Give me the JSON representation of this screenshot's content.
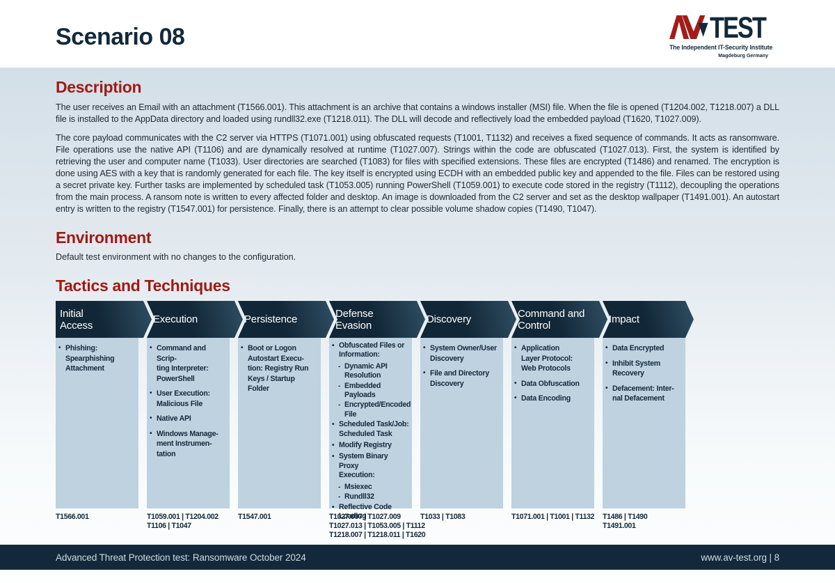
{
  "page": {
    "title": "Scenario 08",
    "footer_left": "Advanced Threat Protection test: Ransomware October 2024",
    "footer_right": "www.av-test.org | 8"
  },
  "logo": {
    "wordmark": "TEST",
    "tagline": "The Independent IT-Security Institute",
    "location": "Magdeburg Germany"
  },
  "sections": {
    "description": {
      "heading": "Description",
      "paragraphs": [
        "The user receives an Email with an attachment (T1566.001). This attachment is an archive that contains a windows installer (MSI) file. When the file is opened (T1204.002, T1218.007) a DLL file is installed to the AppData directory and loaded using rundll32.exe (T1218.011). The DLL will decode and reflectively load the embedded payload (T1620, T1027.009).",
        "The core payload communicates with the C2 server via HTTPS (T1071.001) using obfuscated requests (T1001, T1132) and receives a fixed sequence of commands. It acts as ransomware. File operations use the native API (T1106) and are dynamically resolved at runtime (T1027.007). Strings within the code are obfuscated (T1027.013). First, the system is identified by retrieving the user and computer name (T1033). User directories are searched (T1083) for files with specified extensions. These files are encrypted (T1486) and renamed. The encryption is done using AES with a key that is randomly generated for each file. The key itself is encrypted using ECDH with an embedded public key and appended to the file. Files can be restored using a secret private key. Further tasks are implemented by scheduled task (T1053.005) running PowerShell (T1059.001) to execute code stored in the registry (T1112), decoupling the operations from the main process. A ransom note is written to every affected folder and desktop. An image is downloaded from the C2 server and set as the desktop wallpaper (T1491.001). An autostart entry is written to the registry (T1547.001) for persistence. Finally, there is an attempt to clear possible volume shadow copies (T1490, T1047)."
      ]
    },
    "environment": {
      "heading": "Environment",
      "text": "Default test environment with no changes to the configuration."
    },
    "tactics": {
      "heading": "Tactics and Techniques"
    }
  },
  "matrix": {
    "columns": [
      {
        "header": "Initial\nAccess",
        "items": [
          {
            "style": "bullet",
            "text": "Phishing:\nSpearphishing\nAttachment"
          }
        ],
        "techniques": "T1566.001"
      },
      {
        "header": "Execution",
        "items": [
          {
            "style": "bullet",
            "text": "Command and Scrip-\nting Interpreter:\nPowerShell"
          },
          {
            "style": "bullet",
            "text": "User Execution:\nMalicious File"
          },
          {
            "style": "bullet",
            "text": "Native API"
          },
          {
            "style": "bullet",
            "text": "Windows Manage-\nment Instrumen-\ntation"
          }
        ],
        "techniques": "T1059.001 | T1204.002\nT1106 | T1047"
      },
      {
        "header": "Persistence",
        "items": [
          {
            "style": "bullet",
            "text": "Boot or Logon\nAutostart Execu-\ntion: Registry Run\nKeys / Startup\nFolder"
          }
        ],
        "techniques": "T1547.001"
      },
      {
        "header": "Defense\nEvasion",
        "tight": true,
        "items": [
          {
            "style": "bullet",
            "text": "Obfuscated Files or\nInformation:"
          },
          {
            "style": "dash",
            "text": "Dynamic API\nResolution"
          },
          {
            "style": "dash",
            "text": "Embedded Payloads"
          },
          {
            "style": "dash",
            "text": "Encrypted/Encoded\nFile"
          },
          {
            "style": "bullet",
            "text": "Scheduled Task/Job:\nScheduled Task"
          },
          {
            "style": "bullet",
            "text": "Modify Registry"
          },
          {
            "style": "bullet",
            "text": "System Binary Proxy\nExecution:"
          },
          {
            "style": "dash",
            "text": "Msiexec"
          },
          {
            "style": "dash",
            "text": "Rundll32"
          },
          {
            "style": "bullet",
            "text": "Reflective Code\nLoading"
          }
        ],
        "techniques": "T1027.007 | T1027.009\nT1027.013 | T1053.005 | T1112\nT1218.007 | T1218.011 | T1620"
      },
      {
        "header": "Discovery",
        "items": [
          {
            "style": "bullet",
            "text": "System Owner/User\nDiscovery"
          },
          {
            "style": "bullet",
            "text": "File and Directory\nDiscovery"
          }
        ],
        "techniques": "T1033 | T1083"
      },
      {
        "header": "Command and\nControl",
        "items": [
          {
            "style": "bullet",
            "text": "Application\nLayer Protocol:\nWeb Protocols"
          },
          {
            "style": "bullet",
            "text": "Data Obfuscation"
          },
          {
            "style": "bullet",
            "text": "Data Encoding"
          }
        ],
        "techniques": "T1071.001 | T1001 | T1132"
      },
      {
        "header": "Impact",
        "items": [
          {
            "style": "bullet",
            "text": "Data Encrypted"
          },
          {
            "style": "bullet",
            "text": "Inhibit System\nRecovery"
          },
          {
            "style": "bullet",
            "text": "Defacement: Inter-\nnal Defacement"
          }
        ],
        "techniques": "T1486 | T1490\nT1491.001"
      }
    ]
  },
  "colors": {
    "accent_red": "#9e1a13",
    "navy": "#13293b",
    "banner_gradient_start": "#112636",
    "banner_gradient_end": "#2f4e63",
    "cell_background": "#bed2e0",
    "page_gradient_top": "#d3dfe8",
    "footer_background": "#13293b",
    "footer_text": "#cfdae2"
  }
}
